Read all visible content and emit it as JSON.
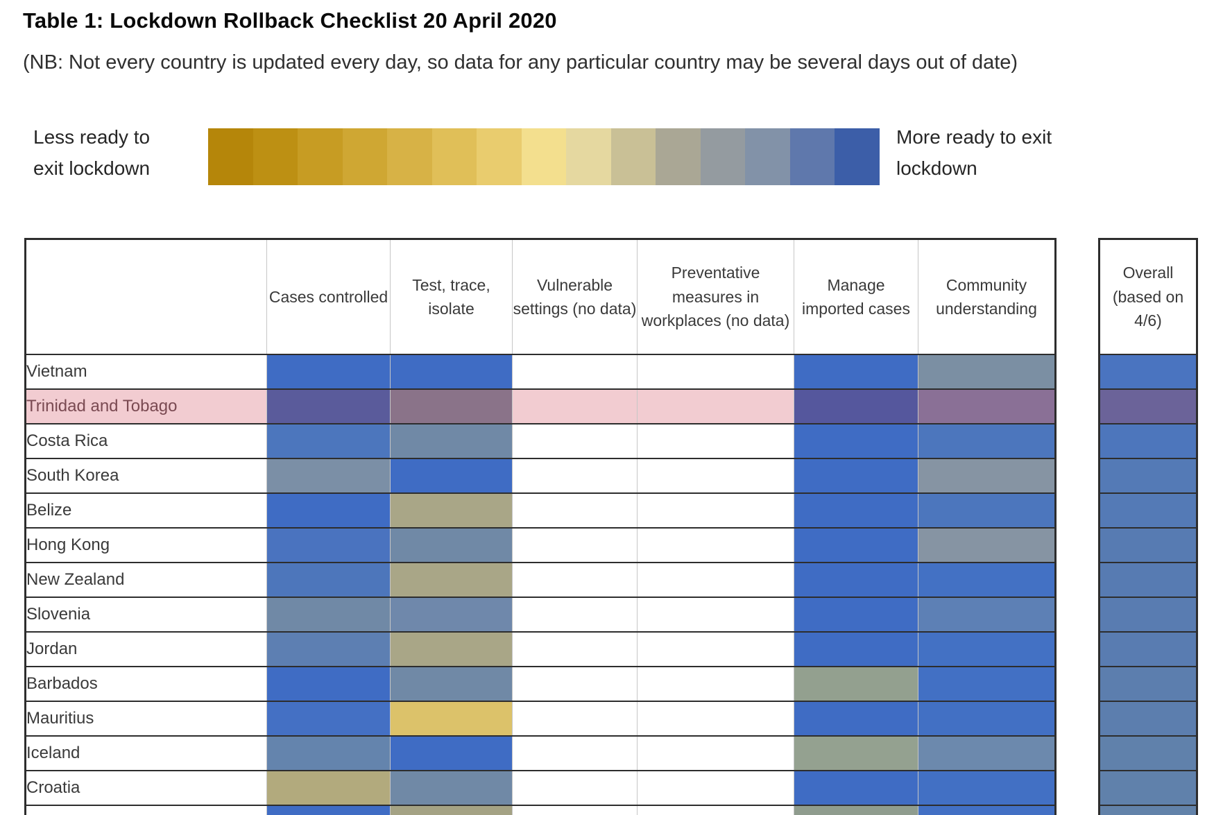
{
  "title": "Table 1: Lockdown Rollback Checklist 20 April 2020",
  "note": "(NB: Not every country is updated every day, so data for any particular country may be several days out of date)",
  "legend": {
    "left_label": "Less ready to\nexit lockdown",
    "right_label": "More ready to exit\nlockdown",
    "gradient_colors": [
      "#b5860a",
      "#bd9013",
      "#c79c23",
      "#cfa733",
      "#d7b246",
      "#e0bf58",
      "#e9cc6e",
      "#f3df8e",
      "#e5d8a0",
      "#c9c096",
      "#aaa795",
      "#949ba0",
      "#8292a8",
      "#5f78ac",
      "#3c5ea8"
    ]
  },
  "table": {
    "column_headers": [
      "Cases controlled",
      "Test, trace, isolate",
      "Vulnerable settings (no data)",
      "Preventative measures in workplaces (no data)",
      "Manage imported cases",
      "Community understanding"
    ],
    "overall_header": "Overall (based on 4/6)",
    "column_keys": [
      "cases",
      "test",
      "vulnerable",
      "preventative",
      "manage",
      "community"
    ],
    "highlight_color": "#f2ccd1",
    "highlight_text_color": "#7a4a52",
    "rows": [
      {
        "country": "Vietnam",
        "highlighted": false,
        "cells": {
          "cases": "#3f6cc4",
          "test": "#3f6cc4",
          "vulnerable": "#ffffff",
          "preventative": "#ffffff",
          "manage": "#3f6cc4",
          "community": "#7b8fa3",
          "overall": "#4a74c0"
        }
      },
      {
        "country": "Trinidad and Tobago",
        "highlighted": true,
        "cells": {
          "cases": "#5a5b9b",
          "test": "#8a7389",
          "vulnerable": "#f2ccd1",
          "preventative": "#f2ccd1",
          "manage": "#55579d",
          "community": "#8a7096",
          "overall": "#6b6399"
        }
      },
      {
        "country": "Costa Rica",
        "highlighted": false,
        "cells": {
          "cases": "#4c76bd",
          "test": "#7089a6",
          "vulnerable": "#ffffff",
          "preventative": "#ffffff",
          "manage": "#3f6cc4",
          "community": "#4c76bd",
          "overall": "#4d76bc"
        }
      },
      {
        "country": "South Korea",
        "highlighted": false,
        "cells": {
          "cases": "#7b8fa6",
          "test": "#3f6cc4",
          "vulnerable": "#ffffff",
          "preventative": "#ffffff",
          "manage": "#3f6cc4",
          "community": "#8694a3",
          "overall": "#547ab6"
        }
      },
      {
        "country": "Belize",
        "highlighted": false,
        "cells": {
          "cases": "#3f6cc4",
          "test": "#a9a687",
          "vulnerable": "#ffffff",
          "preventative": "#ffffff",
          "manage": "#3f6cc4",
          "community": "#4c76bd",
          "overall": "#547ab6"
        }
      },
      {
        "country": "Hong Kong",
        "highlighted": false,
        "cells": {
          "cases": "#4a73bf",
          "test": "#7089a6",
          "vulnerable": "#ffffff",
          "preventative": "#ffffff",
          "manage": "#3f6cc4",
          "community": "#8694a3",
          "overall": "#577bb2"
        }
      },
      {
        "country": "New Zealand",
        "highlighted": false,
        "cells": {
          "cases": "#4d76bb",
          "test": "#a9a687",
          "vulnerable": "#ffffff",
          "preventative": "#ffffff",
          "manage": "#3f6cc4",
          "community": "#4371c4",
          "overall": "#577bb2"
        }
      },
      {
        "country": "Slovenia",
        "highlighted": false,
        "cells": {
          "cases": "#7089a6",
          "test": "#6f88ab",
          "vulnerable": "#ffffff",
          "preventative": "#ffffff",
          "manage": "#3f6cc4",
          "community": "#5d80b5",
          "overall": "#597cb1"
        }
      },
      {
        "country": "Jordan",
        "highlighted": false,
        "cells": {
          "cases": "#5d7fb2",
          "test": "#a9a687",
          "vulnerable": "#ffffff",
          "preventative": "#ffffff",
          "manage": "#3f6cc4",
          "community": "#4371c4",
          "overall": "#597cb1"
        }
      },
      {
        "country": "Barbados",
        "highlighted": false,
        "cells": {
          "cases": "#3f6cc4",
          "test": "#7089a6",
          "vulnerable": "#ffffff",
          "preventative": "#ffffff",
          "manage": "#93a08f",
          "community": "#4270c4",
          "overall": "#5c7eae"
        }
      },
      {
        "country": "Mauritius",
        "highlighted": false,
        "cells": {
          "cases": "#4470c4",
          "test": "#dcc26a",
          "vulnerable": "#ffffff",
          "preventative": "#ffffff",
          "manage": "#3f6cc4",
          "community": "#4270c4",
          "overall": "#5c7eae"
        }
      },
      {
        "country": "Iceland",
        "highlighted": false,
        "cells": {
          "cases": "#6484ad",
          "test": "#3f6cc4",
          "vulnerable": "#ffffff",
          "preventative": "#ffffff",
          "manage": "#94a190",
          "community": "#6c89ad",
          "overall": "#6081ab"
        }
      },
      {
        "country": "Croatia",
        "highlighted": false,
        "cells": {
          "cases": "#b2aa7d",
          "test": "#7089a6",
          "vulnerable": "#ffffff",
          "preventative": "#ffffff",
          "manage": "#3f6cc4",
          "community": "#4270c4",
          "overall": "#6081ab"
        }
      },
      {
        "country": "",
        "highlighted": false,
        "cells": {
          "cases": "#3f6cc4",
          "test": "#a4a284",
          "vulnerable": "#ffffff",
          "preventative": "#ffffff",
          "manage": "#8f9c8e",
          "community": "#4270c4",
          "overall": "#6282a9"
        }
      }
    ]
  }
}
